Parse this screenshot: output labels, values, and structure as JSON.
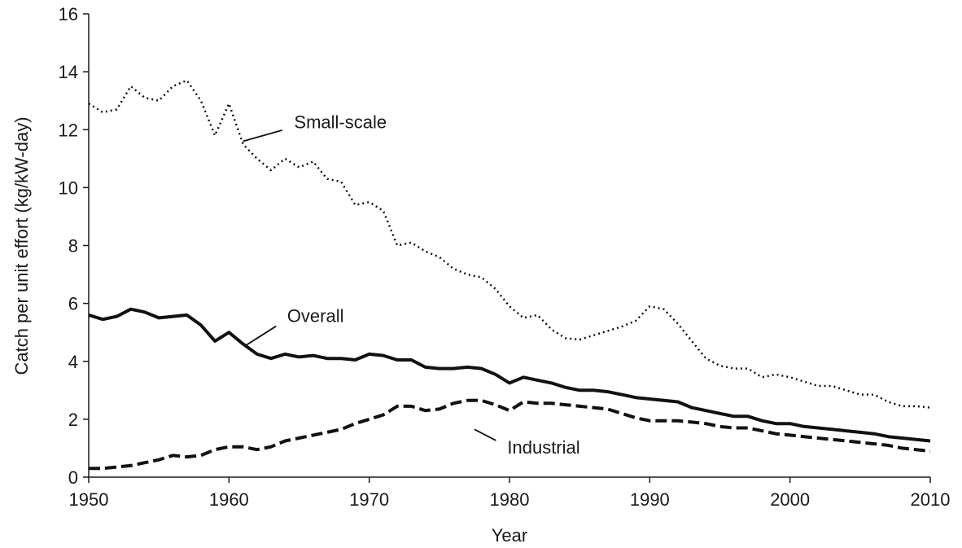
{
  "chart_data": {
    "type": "line",
    "title": "",
    "xlabel": "Year",
    "ylabel": "Catch per unit effort (kg/kW-day)",
    "xlim": [
      1950,
      2010
    ],
    "ylim": [
      0,
      16
    ],
    "x_ticks": [
      1950,
      1960,
      1970,
      1980,
      1990,
      2000,
      2010
    ],
    "y_ticks": [
      0,
      2,
      4,
      6,
      8,
      10,
      12,
      14,
      16
    ],
    "grid": false,
    "legend": "none (series labelled directly with leader lines)",
    "x": [
      1950,
      1951,
      1952,
      1953,
      1954,
      1955,
      1956,
      1957,
      1958,
      1959,
      1960,
      1961,
      1962,
      1963,
      1964,
      1965,
      1966,
      1967,
      1968,
      1969,
      1970,
      1971,
      1972,
      1973,
      1974,
      1975,
      1976,
      1977,
      1978,
      1979,
      1980,
      1981,
      1982,
      1983,
      1984,
      1985,
      1986,
      1987,
      1988,
      1989,
      1990,
      1991,
      1992,
      1993,
      1994,
      1995,
      1996,
      1997,
      1998,
      1999,
      2000,
      2001,
      2002,
      2003,
      2004,
      2005,
      2006,
      2007,
      2008,
      2009,
      2010
    ],
    "series": [
      {
        "name": "Small-scale",
        "style": "dotted",
        "values": [
          12.9,
          12.6,
          12.7,
          13.5,
          13.1,
          13.0,
          13.5,
          13.7,
          13.0,
          11.8,
          12.9,
          11.5,
          11.0,
          10.6,
          11.0,
          10.7,
          10.9,
          10.3,
          10.2,
          9.4,
          9.5,
          9.2,
          8.0,
          8.1,
          7.8,
          7.6,
          7.2,
          7.0,
          6.9,
          6.5,
          5.9,
          5.5,
          5.6,
          5.1,
          4.8,
          4.75,
          4.9,
          5.05,
          5.2,
          5.4,
          5.9,
          5.8,
          5.3,
          4.7,
          4.1,
          3.85,
          3.75,
          3.75,
          3.45,
          3.55,
          3.45,
          3.3,
          3.15,
          3.15,
          3.0,
          2.85,
          2.85,
          2.6,
          2.45,
          2.45,
          2.4
        ]
      },
      {
        "name": "Overall",
        "style": "solid",
        "values": [
          5.6,
          5.45,
          5.55,
          5.8,
          5.7,
          5.5,
          5.55,
          5.6,
          5.25,
          4.7,
          5.0,
          4.6,
          4.25,
          4.1,
          4.25,
          4.15,
          4.2,
          4.1,
          4.1,
          4.05,
          4.25,
          4.2,
          4.05,
          4.05,
          3.8,
          3.75,
          3.75,
          3.8,
          3.75,
          3.55,
          3.25,
          3.45,
          3.35,
          3.25,
          3.1,
          3.0,
          3.0,
          2.95,
          2.85,
          2.75,
          2.7,
          2.65,
          2.6,
          2.4,
          2.3,
          2.2,
          2.1,
          2.1,
          1.95,
          1.85,
          1.85,
          1.75,
          1.7,
          1.65,
          1.6,
          1.55,
          1.5,
          1.4,
          1.35,
          1.3,
          1.25
        ]
      },
      {
        "name": "Industrial",
        "style": "dashed",
        "values": [
          0.3,
          0.3,
          0.35,
          0.4,
          0.5,
          0.6,
          0.75,
          0.7,
          0.75,
          0.95,
          1.05,
          1.05,
          0.95,
          1.05,
          1.25,
          1.35,
          1.45,
          1.55,
          1.65,
          1.85,
          2.0,
          2.15,
          2.45,
          2.45,
          2.3,
          2.35,
          2.55,
          2.65,
          2.65,
          2.5,
          2.3,
          2.6,
          2.55,
          2.55,
          2.5,
          2.45,
          2.4,
          2.35,
          2.2,
          2.05,
          1.95,
          1.95,
          1.95,
          1.9,
          1.85,
          1.75,
          1.7,
          1.7,
          1.6,
          1.5,
          1.45,
          1.4,
          1.35,
          1.3,
          1.25,
          1.2,
          1.15,
          1.1,
          1.0,
          0.95,
          0.9
        ]
      }
    ],
    "annotations": [
      {
        "text": "Small-scale",
        "series": "Small-scale",
        "x": 1961,
        "y": 11.6,
        "label_x": 1964.3,
        "label_y": 12.05
      },
      {
        "text": "Overall",
        "series": "Overall",
        "x": 1961.2,
        "y": 4.55,
        "label_x": 1963.8,
        "label_y": 5.35
      },
      {
        "text": "Industrial",
        "series": "Industrial",
        "x": 1977.5,
        "y": 1.65,
        "label_x": 1979.5,
        "label_y": 1.15
      }
    ]
  }
}
